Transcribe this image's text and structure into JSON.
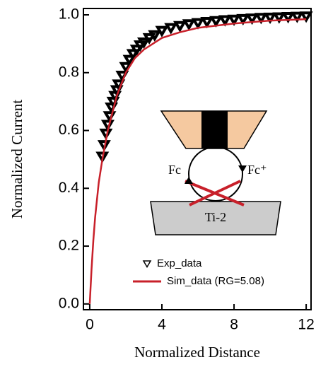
{
  "chart_data": {
    "type": "line",
    "xlabel": "Normalized Distance",
    "ylabel": "Normalized Current",
    "xlim": [
      -0.35,
      12.27
    ],
    "ylim": [
      -0.02,
      1.022
    ],
    "xticks": [
      0,
      4,
      8,
      12
    ],
    "yticks": [
      {
        "value": 0,
        "label": "0.0"
      },
      0.2,
      0.4,
      0.6,
      0.8,
      {
        "value": 1,
        "label": "1.0"
      }
    ],
    "series": [
      {
        "name": "Exp_data",
        "color": "#000000",
        "marker": "triangle-down",
        "x": [
          0.7,
          0.8,
          0.9,
          1.0,
          1.1,
          1.2,
          1.3,
          1.4,
          1.5,
          1.6,
          1.8,
          2.0,
          2.2,
          2.4,
          2.6,
          2.8,
          3.0,
          3.3,
          3.6,
          4.0,
          4.5,
          5,
          5.5,
          6,
          6.5,
          7,
          7.5,
          8,
          8.5,
          9,
          9.5,
          10,
          10.5,
          11,
          11.5,
          12
        ],
        "values": [
          0.51,
          0.55,
          0.59,
          0.62,
          0.65,
          0.68,
          0.7,
          0.72,
          0.74,
          0.76,
          0.79,
          0.82,
          0.845,
          0.865,
          0.88,
          0.895,
          0.905,
          0.92,
          0.93,
          0.945,
          0.955,
          0.962,
          0.968,
          0.972,
          0.976,
          0.979,
          0.982,
          0.984,
          0.986,
          0.988,
          0.99,
          0.991,
          0.992,
          0.993,
          0.994,
          0.995
        ]
      },
      {
        "name": "Sim_data (RG=5.08)",
        "color": "#c8202a",
        "marker": "line",
        "x": [
          0,
          0.1,
          0.2,
          0.3,
          0.5,
          0.7,
          1,
          1.5,
          2,
          2.5,
          3,
          4,
          5,
          6,
          8,
          10,
          12
        ],
        "values": [
          0,
          0.12,
          0.22,
          0.3,
          0.42,
          0.5,
          0.6,
          0.72,
          0.8,
          0.85,
          0.88,
          0.92,
          0.94,
          0.955,
          0.97,
          0.98,
          0.985
        ]
      }
    ],
    "inset": {
      "left_label": "Fc",
      "right_label": "Fc⁺",
      "substrate_label": "Ti-2"
    }
  }
}
